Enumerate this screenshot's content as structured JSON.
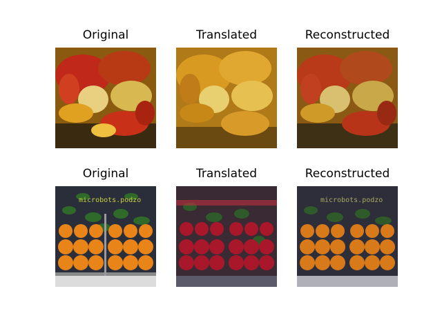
{
  "panels": [
    {
      "title": "Original"
    },
    {
      "title": "Translated"
    },
    {
      "title": "Reconstructed"
    },
    {
      "title": "Original"
    },
    {
      "title": "Translated"
    },
    {
      "title": "Reconstructed"
    }
  ],
  "watermark_text": "microbots.podzo"
}
